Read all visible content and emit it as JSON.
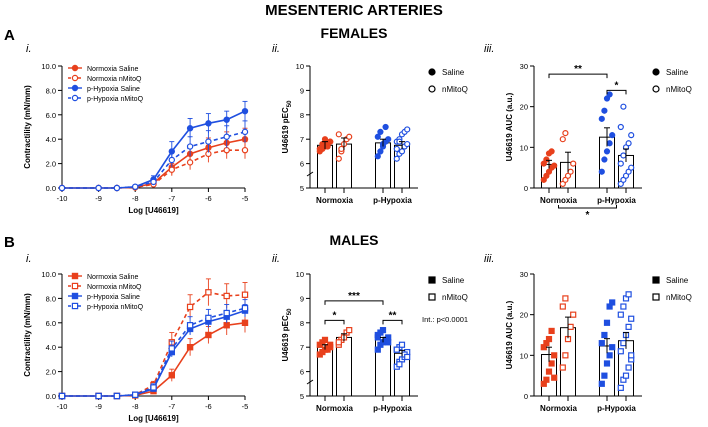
{
  "figure": {
    "title": "MESENTERIC ARTERIES",
    "females_heading": "FEMALES",
    "males_heading": "MALES",
    "panel_a": "A",
    "panel_b": "B",
    "colors": {
      "normoxia": "#e8401c",
      "hypoxia": "#1f4fe0"
    }
  },
  "chart_data": [
    {
      "id": "A-i",
      "roman": "i.",
      "type": "line",
      "xlabel": "Log [U46619]",
      "ylabel": "Contractility (mN/mm)",
      "xlim": [
        -10,
        -5
      ],
      "ylim": [
        0,
        10
      ],
      "xticks": [
        "-10",
        "-9",
        "-8",
        "-7",
        "-6",
        "-5"
      ],
      "yticks": [
        "0.0",
        "2.0",
        "4.0",
        "6.0",
        "8.0",
        "10.0"
      ],
      "x": [
        -10,
        -9,
        -8.5,
        -8,
        -7.5,
        -7,
        -6.5,
        -6,
        -5.5,
        -5
      ],
      "marker": "circle",
      "series": [
        {
          "name": "Normoxia Saline",
          "group": "normoxia",
          "fill": true,
          "dashed": false,
          "values": [
            0,
            0,
            0,
            0.05,
            0.4,
            1.7,
            2.8,
            3.3,
            3.7,
            4.0
          ],
          "err": [
            0,
            0,
            0,
            0.05,
            0.15,
            0.6,
            0.7,
            0.8,
            0.9,
            0.9
          ]
        },
        {
          "name": "Normoxia nMitoQ",
          "group": "normoxia",
          "fill": false,
          "dashed": true,
          "values": [
            0,
            0,
            0,
            0.05,
            0.3,
            1.5,
            2.1,
            2.8,
            3.1,
            3.1
          ],
          "err": [
            0,
            0,
            0,
            0.05,
            0.15,
            0.5,
            0.6,
            0.7,
            0.7,
            0.7
          ]
        },
        {
          "name": "p-Hypoxia Saline",
          "group": "hypoxia",
          "fill": true,
          "dashed": false,
          "values": [
            0,
            0,
            0,
            0.1,
            0.7,
            3.0,
            4.9,
            5.3,
            5.6,
            6.3
          ],
          "err": [
            0,
            0,
            0,
            0.1,
            0.3,
            0.8,
            0.8,
            0.8,
            0.7,
            0.8
          ]
        },
        {
          "name": "p-Hypoxia nMitoQ",
          "group": "hypoxia",
          "fill": false,
          "dashed": true,
          "values": [
            0,
            0,
            0,
            0.1,
            0.5,
            2.3,
            3.4,
            3.8,
            4.2,
            4.6
          ],
          "err": [
            0,
            0,
            0,
            0.1,
            0.2,
            0.6,
            0.8,
            0.9,
            0.9,
            0.9
          ]
        }
      ]
    },
    {
      "id": "A-ii",
      "roman": "ii.",
      "type": "bar",
      "ylabel": "U46619 pEC50",
      "ylabel_main": "U46619 pEC",
      "ylabel_sub": "50",
      "ylim": [
        5,
        10
      ],
      "yticks": [
        "5",
        "6",
        "7",
        "8",
        "9",
        "10"
      ],
      "groups": [
        "Normoxia",
        "p-Hypoxia"
      ],
      "legend": [
        "Saline",
        "nMitoQ"
      ],
      "marker": "circle",
      "series": [
        {
          "name": "Normoxia Saline",
          "group": "normoxia",
          "fill": true,
          "mean": 6.75,
          "sem": 0.15,
          "points": [
            6.5,
            6.6,
            6.7,
            6.8,
            6.9,
            6.6,
            6.8,
            7.0,
            6.7,
            6.9
          ]
        },
        {
          "name": "Normoxia nMitoQ",
          "group": "normoxia",
          "fill": false,
          "mean": 6.8,
          "sem": 0.25,
          "points": [
            6.2,
            6.5,
            6.8,
            7.0,
            7.1,
            7.2,
            6.6
          ]
        },
        {
          "name": "p-Hypoxia Saline",
          "group": "hypoxia",
          "fill": true,
          "mean": 6.85,
          "sem": 0.15,
          "points": [
            6.3,
            6.5,
            6.7,
            6.9,
            7.0,
            7.1,
            7.3,
            6.8,
            7.5
          ]
        },
        {
          "name": "p-Hypoxia nMitoQ",
          "group": "hypoxia",
          "fill": false,
          "mean": 6.75,
          "sem": 0.15,
          "points": [
            6.2,
            6.4,
            6.5,
            6.7,
            6.8,
            6.9,
            7.0,
            7.2,
            7.3,
            7.4,
            6.6,
            6.9
          ]
        }
      ]
    },
    {
      "id": "A-iii",
      "roman": "iii.",
      "type": "bar",
      "ylabel": "U46619 AUC (a.u.)",
      "ylim": [
        0,
        30
      ],
      "yticks": [
        "0",
        "10",
        "20",
        "30"
      ],
      "groups": [
        "Normoxia",
        "p-Hypoxia"
      ],
      "legend": [
        "Saline",
        "nMitoQ"
      ],
      "marker": "circle",
      "significance": [
        {
          "label": "**",
          "from": 0,
          "to": 2,
          "level": 28
        },
        {
          "label": "*",
          "from": 2,
          "to": 3,
          "level": 24
        },
        {
          "label": "*",
          "from": "Normoxia",
          "to": "p-Hypoxia",
          "level": "below"
        }
      ],
      "series": [
        {
          "name": "Normoxia Saline",
          "group": "normoxia",
          "fill": true,
          "mean": 5.8,
          "sem": 1.0,
          "points": [
            2,
            3,
            4,
            5,
            5.5,
            6,
            7,
            8.5,
            9
          ]
        },
        {
          "name": "Normoxia nMitoQ",
          "group": "normoxia",
          "fill": false,
          "mean": 6.3,
          "sem": 2.5,
          "points": [
            1,
            2,
            3,
            4,
            6,
            12,
            13.5
          ]
        },
        {
          "name": "p-Hypoxia Saline",
          "group": "hypoxia",
          "fill": true,
          "mean": 12.5,
          "sem": 2.3,
          "points": [
            4,
            7,
            9,
            11,
            13,
            17,
            19,
            22,
            23
          ]
        },
        {
          "name": "p-Hypoxia nMitoQ",
          "group": "hypoxia",
          "fill": false,
          "mean": 8.0,
          "sem": 1.6,
          "points": [
            1,
            2,
            3,
            4,
            5,
            6,
            8,
            10,
            11,
            13,
            15,
            20
          ]
        }
      ]
    },
    {
      "id": "B-i",
      "roman": "i.",
      "type": "line",
      "xlabel": "Log [U46619]",
      "ylabel": "Contractility (mN/mm)",
      "xlim": [
        -10,
        -5
      ],
      "ylim": [
        0,
        10
      ],
      "xticks": [
        "-10",
        "-9",
        "-8",
        "-7",
        "-6",
        "-5"
      ],
      "yticks": [
        "0.0",
        "2.0",
        "4.0",
        "6.0",
        "8.0",
        "10.0"
      ],
      "x": [
        -10,
        -9,
        -8.5,
        -8,
        -7.5,
        -7,
        -6.5,
        -6,
        -5.5,
        -5
      ],
      "marker": "square",
      "series": [
        {
          "name": "Normoxia Saline",
          "group": "normoxia",
          "fill": true,
          "dashed": false,
          "values": [
            0,
            0,
            0,
            0.05,
            0.4,
            1.7,
            4.0,
            5.0,
            5.8,
            6.0
          ],
          "err": [
            0,
            0,
            0,
            0.05,
            0.2,
            0.5,
            0.7,
            0.7,
            0.8,
            0.8
          ]
        },
        {
          "name": "Normoxia nMitoQ",
          "group": "normoxia",
          "fill": false,
          "dashed": true,
          "values": [
            0,
            0,
            0,
            0.1,
            0.9,
            4.4,
            7.3,
            8.5,
            8.2,
            8.3
          ],
          "err": [
            0,
            0,
            0,
            0.1,
            0.3,
            0.8,
            1.0,
            1.1,
            1.0,
            1.0
          ]
        },
        {
          "name": "p-Hypoxia Saline",
          "group": "hypoxia",
          "fill": true,
          "dashed": false,
          "values": [
            0,
            0,
            0,
            0.1,
            0.6,
            3.6,
            5.5,
            6.1,
            6.5,
            7.0
          ],
          "err": [
            0,
            0,
            0,
            0.1,
            0.2,
            0.4,
            0.5,
            0.5,
            0.5,
            0.5
          ]
        },
        {
          "name": "p-Hypoxia nMitoQ",
          "group": "hypoxia",
          "fill": false,
          "dashed": true,
          "values": [
            0,
            0,
            0,
            0.1,
            0.7,
            3.9,
            5.8,
            6.4,
            6.8,
            7.2
          ],
          "err": [
            0,
            0,
            0,
            0.1,
            0.3,
            0.6,
            0.7,
            0.7,
            0.7,
            0.7
          ]
        }
      ]
    },
    {
      "id": "B-ii",
      "roman": "ii.",
      "type": "bar",
      "ylabel": "U46619 pEC50",
      "ylabel_main": "U46619 pEC",
      "ylabel_sub": "50",
      "ylim": [
        5,
        10
      ],
      "yticks": [
        "5",
        "6",
        "7",
        "8",
        "9",
        "10"
      ],
      "groups": [
        "Normoxia",
        "p-Hypoxia"
      ],
      "legend": [
        "Saline",
        "nMitoQ"
      ],
      "marker": "square",
      "annotation": "Int.: p<0.0001",
      "significance": [
        {
          "label": "***",
          "from": 0,
          "to": 2,
          "level": 8.9
        },
        {
          "label": "*",
          "from": 0,
          "to": 1,
          "level": 8.1
        },
        {
          "label": "**",
          "from": 2,
          "to": 3,
          "level": 8.1
        }
      ],
      "series": [
        {
          "name": "Normoxia Saline",
          "group": "normoxia",
          "fill": true,
          "mean": 7.0,
          "sem": 0.1,
          "points": [
            6.7,
            6.8,
            6.9,
            7.0,
            7.0,
            7.1,
            7.2,
            7.3,
            6.9,
            7.1
          ]
        },
        {
          "name": "Normoxia nMitoQ",
          "group": "normoxia",
          "fill": false,
          "mean": 7.4,
          "sem": 0.15,
          "points": [
            7.1,
            7.3,
            7.4,
            7.6,
            7.7,
            7.2
          ]
        },
        {
          "name": "p-Hypoxia Saline",
          "group": "hypoxia",
          "fill": true,
          "mean": 7.3,
          "sem": 0.1,
          "points": [
            6.9,
            7.1,
            7.2,
            7.3,
            7.4,
            7.5,
            7.6,
            7.7,
            7.3,
            7.2,
            7.4
          ]
        },
        {
          "name": "p-Hypoxia nMitoQ",
          "group": "hypoxia",
          "fill": false,
          "mean": 6.75,
          "sem": 0.12,
          "points": [
            6.2,
            6.4,
            6.5,
            6.6,
            6.8,
            6.9,
            7.0,
            7.1,
            6.7,
            6.6,
            6.9,
            6.3
          ]
        }
      ]
    },
    {
      "id": "B-iii",
      "roman": "iii.",
      "type": "bar",
      "ylabel": "U46619 AUC (a.u.)",
      "ylim": [
        0,
        30
      ],
      "yticks": [
        "0",
        "10",
        "20",
        "30"
      ],
      "groups": [
        "Normoxia",
        "p-Hypoxia"
      ],
      "legend": [
        "Saline",
        "nMitoQ"
      ],
      "marker": "square",
      "series": [
        {
          "name": "Normoxia Saline",
          "group": "normoxia",
          "fill": true,
          "mean": 10.2,
          "sem": 1.8,
          "points": [
            3,
            4,
            6,
            8,
            10,
            12,
            13,
            14,
            16,
            4.5
          ]
        },
        {
          "name": "Normoxia nMitoQ",
          "group": "normoxia",
          "fill": false,
          "mean": 16.8,
          "sem": 2.6,
          "points": [
            7,
            10,
            14,
            17,
            20,
            22,
            24
          ]
        },
        {
          "name": "p-Hypoxia Saline",
          "group": "hypoxia",
          "fill": true,
          "mean": 12.3,
          "sem": 1.8,
          "points": [
            3,
            5,
            8,
            10,
            12,
            13,
            15,
            18,
            22,
            23
          ]
        },
        {
          "name": "p-Hypoxia nMitoQ",
          "group": "hypoxia",
          "fill": false,
          "mean": 13.6,
          "sem": 2.0,
          "points": [
            2,
            4,
            5,
            7,
            9,
            11,
            13,
            15,
            17,
            19,
            20,
            22,
            24,
            25,
            10
          ]
        }
      ]
    }
  ]
}
